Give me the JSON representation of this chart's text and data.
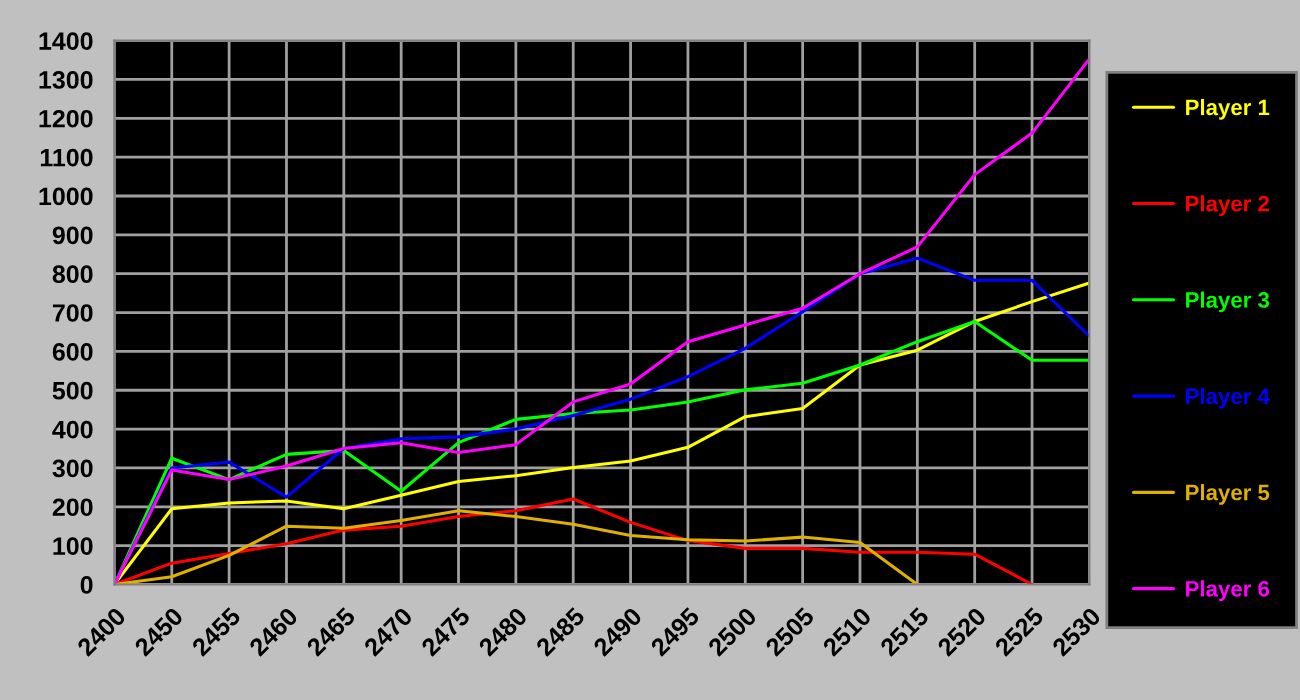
{
  "chart_data": {
    "type": "line",
    "categories": [
      "2400",
      "2450",
      "2455",
      "2460",
      "2465",
      "2470",
      "2475",
      "2480",
      "2485",
      "2490",
      "2495",
      "2500",
      "2505",
      "2510",
      "2515",
      "2520",
      "2525",
      "2530"
    ],
    "series": [
      {
        "name": "Player 1",
        "color": "#ffff00",
        "values": [
          0,
          195,
          210,
          215,
          195,
          230,
          265,
          280,
          301,
          318,
          353,
          432,
          453,
          565,
          603,
          677,
          728,
          776
        ]
      },
      {
        "name": "Player 2",
        "color": "#ff0000",
        "values": [
          0,
          55,
          80,
          105,
          140,
          150,
          175,
          190,
          220,
          160,
          113,
          93,
          93,
          83,
          83,
          78,
          0,
          null
        ]
      },
      {
        "name": "Player 3",
        "color": "#00ff00",
        "values": [
          0,
          325,
          270,
          335,
          345,
          240,
          365,
          425,
          440,
          449,
          470,
          501,
          518,
          565,
          625,
          677,
          577,
          577
        ]
      },
      {
        "name": "Player 4",
        "color": "#0000ff",
        "values": [
          0,
          300,
          315,
          225,
          350,
          375,
          380,
          400,
          435,
          477,
          535,
          608,
          702,
          800,
          840,
          783,
          783,
          639
        ]
      },
      {
        "name": "Player 5",
        "color": "#e0b000",
        "values": [
          0,
          20,
          75,
          150,
          145,
          165,
          190,
          175,
          155,
          126,
          115,
          112,
          122,
          108,
          0,
          null,
          null,
          null
        ]
      },
      {
        "name": "Player 6",
        "color": "#ff00ff",
        "values": [
          0,
          295,
          270,
          305,
          350,
          365,
          340,
          360,
          470,
          516,
          625,
          668,
          711,
          800,
          869,
          1055,
          1162,
          1353
        ]
      }
    ],
    "ylim": [
      0,
      1400
    ],
    "yticks": [
      0,
      100,
      200,
      300,
      400,
      500,
      600,
      700,
      800,
      900,
      1000,
      1100,
      1200,
      1300,
      1400
    ],
    "grid": true,
    "legend": "right",
    "marker": "none",
    "line_style": "solid"
  }
}
